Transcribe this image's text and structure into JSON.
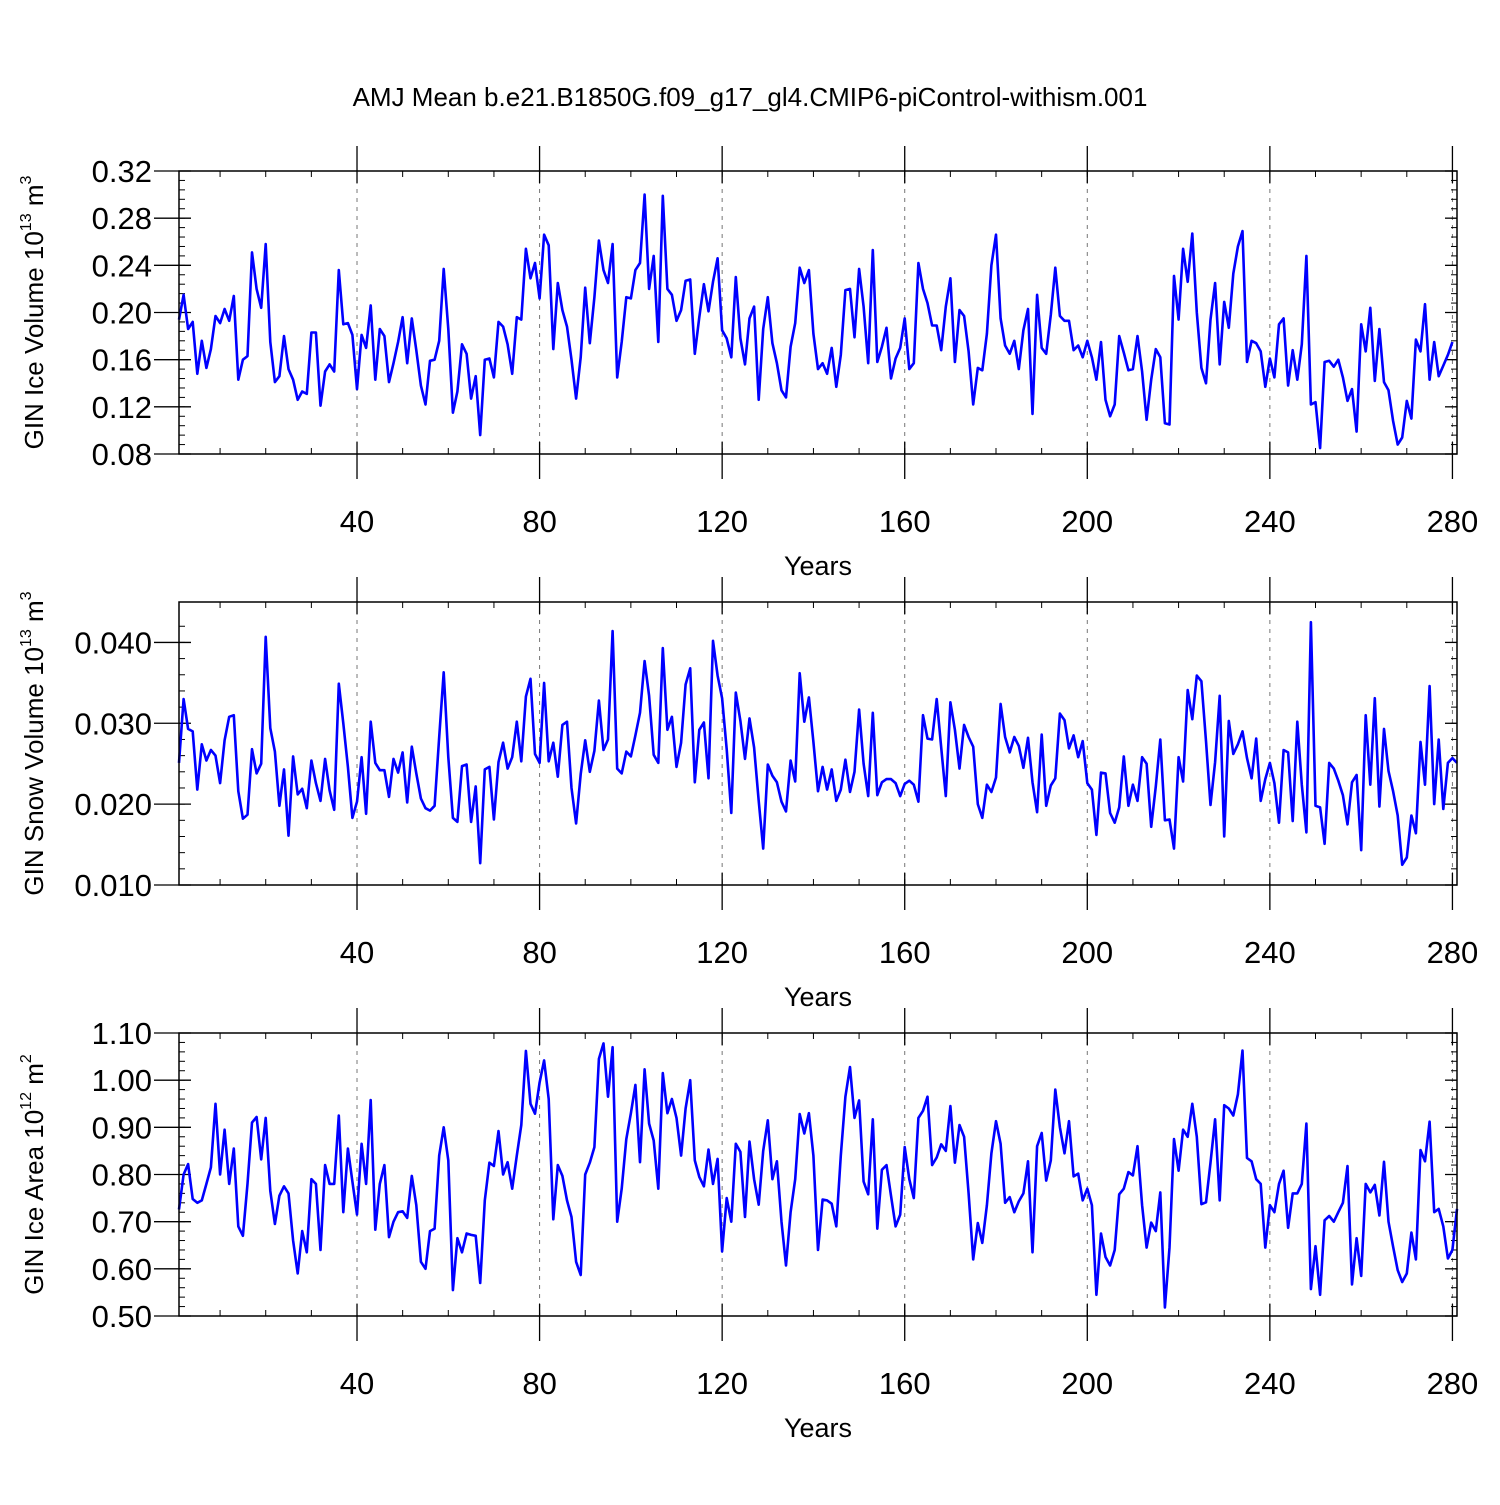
{
  "page": {
    "title": "AMJ Mean b.e21.B1850G.f09_g17_gl4.CMIP6-piControl-withism.001"
  },
  "chart_data": [
    {
      "type": "line",
      "ylabel": "GIN Ice Volume 10",
      "ylabel_sup": "13",
      "ylabel_unit": " m",
      "ylabel_unit_sup": "3",
      "xlabel": "Years",
      "xlim": [
        1,
        281
      ],
      "ylim": [
        0.08,
        0.32
      ],
      "xticks": [
        40,
        80,
        120,
        160,
        200,
        240,
        280
      ],
      "xtick_labels": [
        "40",
        "80",
        "120",
        "160",
        "200",
        "240",
        "280"
      ],
      "yticks": [
        0.08,
        0.12,
        0.16,
        0.2,
        0.24,
        0.28,
        0.32
      ],
      "ytick_labels": [
        "0.08",
        "0.12",
        "0.16",
        "0.20",
        "0.24",
        "0.28",
        "0.32"
      ],
      "y_minor_step": 0.008,
      "x_minor_step": 10,
      "vgrid": "dashed at major x ticks",
      "line_color": "#0000ff",
      "series": [
        {
          "x_start": 1,
          "values": [
            0.194,
            0.215,
            0.186,
            0.192,
            0.148,
            0.176,
            0.153,
            0.169,
            0.197,
            0.191,
            0.203,
            0.193,
            0.214,
            0.143,
            0.16,
            0.163,
            0.251,
            0.22,
            0.204,
            0.258,
            0.175,
            0.141,
            0.146,
            0.18,
            0.152,
            0.143,
            0.126,
            0.133,
            0.131,
            0.183,
            0.183,
            0.121,
            0.15,
            0.156,
            0.15,
            0.236,
            0.19,
            0.191,
            0.181,
            0.135,
            0.181,
            0.17,
            0.206,
            0.143,
            0.186,
            0.18,
            0.141,
            0.157,
            0.175,
            0.196,
            0.157,
            0.195,
            0.168,
            0.138,
            0.122,
            0.159,
            0.16,
            0.176,
            0.237,
            0.186,
            0.115,
            0.133,
            0.173,
            0.165,
            0.127,
            0.146,
            0.096,
            0.16,
            0.161,
            0.145,
            0.192,
            0.188,
            0.173,
            0.148,
            0.196,
            0.194,
            0.254,
            0.229,
            0.242,
            0.212,
            0.266,
            0.257,
            0.169,
            0.225,
            0.202,
            0.188,
            0.16,
            0.127,
            0.162,
            0.221,
            0.174,
            0.213,
            0.261,
            0.236,
            0.225,
            0.258,
            0.145,
            0.175,
            0.213,
            0.212,
            0.236,
            0.242,
            0.3,
            0.22,
            0.248,
            0.175,
            0.299,
            0.22,
            0.215,
            0.193,
            0.202,
            0.227,
            0.228,
            0.165,
            0.196,
            0.224,
            0.201,
            0.226,
            0.246,
            0.185,
            0.178,
            0.162,
            0.23,
            0.178,
            0.156,
            0.195,
            0.205,
            0.126,
            0.186,
            0.213,
            0.174,
            0.157,
            0.134,
            0.128,
            0.171,
            0.191,
            0.238,
            0.225,
            0.236,
            0.182,
            0.152,
            0.157,
            0.148,
            0.17,
            0.137,
            0.164,
            0.219,
            0.22,
            0.179,
            0.237,
            0.205,
            0.157,
            0.253,
            0.158,
            0.171,
            0.187,
            0.144,
            0.161,
            0.17,
            0.195,
            0.152,
            0.157,
            0.242,
            0.22,
            0.208,
            0.189,
            0.189,
            0.168,
            0.205,
            0.229,
            0.158,
            0.202,
            0.197,
            0.167,
            0.122,
            0.153,
            0.151,
            0.182,
            0.24,
            0.266,
            0.195,
            0.172,
            0.165,
            0.176,
            0.152,
            0.185,
            0.203,
            0.114,
            0.215,
            0.17,
            0.165,
            0.198,
            0.238,
            0.197,
            0.193,
            0.193,
            0.168,
            0.172,
            0.162,
            0.176,
            0.162,
            0.143,
            0.175,
            0.126,
            0.112,
            0.122,
            0.18,
            0.166,
            0.151,
            0.152,
            0.18,
            0.15,
            0.109,
            0.143,
            0.169,
            0.162,
            0.106,
            0.105,
            0.231,
            0.194,
            0.254,
            0.226,
            0.267,
            0.2,
            0.153,
            0.14,
            0.194,
            0.225,
            0.156,
            0.209,
            0.187,
            0.233,
            0.256,
            0.269,
            0.158,
            0.176,
            0.174,
            0.167,
            0.137,
            0.161,
            0.145,
            0.19,
            0.195,
            0.138,
            0.168,
            0.143,
            0.173,
            0.248,
            0.122,
            0.124,
            0.085,
            0.158,
            0.159,
            0.154,
            0.16,
            0.145,
            0.125,
            0.135,
            0.099,
            0.19,
            0.167,
            0.204,
            0.142,
            0.186,
            0.141,
            0.134,
            0.108,
            0.088,
            0.094,
            0.125,
            0.11,
            0.177,
            0.167,
            0.207,
            0.143,
            0.175,
            0.146,
            0.155,
            0.164,
            0.175
          ]
        }
      ]
    },
    {
      "type": "line",
      "ylabel": "GIN Snow Volume 10",
      "ylabel_sup": "13",
      "ylabel_unit": " m",
      "ylabel_unit_sup": "3",
      "xlabel": "Years",
      "xlim": [
        1,
        281
      ],
      "ylim": [
        0.01,
        0.045
      ],
      "xticks": [
        40,
        80,
        120,
        160,
        200,
        240,
        280
      ],
      "xtick_labels": [
        "40",
        "80",
        "120",
        "160",
        "200",
        "240",
        "280"
      ],
      "yticks": [
        0.01,
        0.02,
        0.03,
        0.04
      ],
      "ytick_labels": [
        "0.010",
        "0.020",
        "0.030",
        "0.040"
      ],
      "y_minor_step": 0.002,
      "x_minor_step": 10,
      "vgrid": "dashed at major x ticks",
      "line_color": "#0000ff",
      "series": [
        {
          "x_start": 1,
          "values": [
            0.0251,
            0.033,
            0.0293,
            0.029,
            0.0218,
            0.0274,
            0.0254,
            0.0267,
            0.026,
            0.0226,
            0.0279,
            0.0308,
            0.031,
            0.0216,
            0.0182,
            0.0187,
            0.0268,
            0.0238,
            0.025,
            0.0407,
            0.0294,
            0.0265,
            0.0198,
            0.0243,
            0.0161,
            0.0259,
            0.0212,
            0.0219,
            0.0195,
            0.0254,
            0.0226,
            0.0204,
            0.0256,
            0.0217,
            0.0193,
            0.0349,
            0.03,
            0.0246,
            0.0183,
            0.0203,
            0.0258,
            0.0188,
            0.0302,
            0.0251,
            0.0242,
            0.0242,
            0.0209,
            0.0256,
            0.0239,
            0.0264,
            0.0202,
            0.0271,
            0.0238,
            0.0207,
            0.0195,
            0.0192,
            0.0198,
            0.0283,
            0.0363,
            0.0258,
            0.0183,
            0.0178,
            0.0247,
            0.0249,
            0.0178,
            0.0222,
            0.0127,
            0.0243,
            0.0246,
            0.0181,
            0.0252,
            0.0276,
            0.0244,
            0.0258,
            0.0302,
            0.0253,
            0.0333,
            0.0355,
            0.0262,
            0.0251,
            0.035,
            0.0253,
            0.0276,
            0.0234,
            0.0298,
            0.0302,
            0.022,
            0.0176,
            0.0237,
            0.0279,
            0.024,
            0.0266,
            0.0328,
            0.0267,
            0.028,
            0.0414,
            0.0244,
            0.0238,
            0.0265,
            0.0259,
            0.0285,
            0.0313,
            0.0377,
            0.0334,
            0.0261,
            0.0251,
            0.0393,
            0.0292,
            0.0308,
            0.0246,
            0.0276,
            0.0348,
            0.0368,
            0.0227,
            0.0292,
            0.0301,
            0.0232,
            0.0402,
            0.0359,
            0.0331,
            0.0268,
            0.0189,
            0.0338,
            0.0303,
            0.0256,
            0.0306,
            0.027,
            0.0204,
            0.0145,
            0.0249,
            0.0235,
            0.0227,
            0.0203,
            0.0191,
            0.0254,
            0.0228,
            0.0362,
            0.0302,
            0.0332,
            0.0277,
            0.0216,
            0.0246,
            0.0218,
            0.0243,
            0.0204,
            0.0218,
            0.0255,
            0.0215,
            0.024,
            0.0317,
            0.025,
            0.021,
            0.0313,
            0.0211,
            0.0227,
            0.0231,
            0.0231,
            0.0226,
            0.021,
            0.0225,
            0.0229,
            0.0224,
            0.0203,
            0.031,
            0.0281,
            0.028,
            0.033,
            0.027,
            0.021,
            0.0326,
            0.0292,
            0.0244,
            0.0298,
            0.0283,
            0.0271,
            0.02,
            0.0183,
            0.0224,
            0.0215,
            0.0233,
            0.0324,
            0.0283,
            0.0264,
            0.0283,
            0.0272,
            0.0245,
            0.0282,
            0.0227,
            0.019,
            0.0286,
            0.0198,
            0.0223,
            0.0232,
            0.0312,
            0.0304,
            0.0269,
            0.0285,
            0.0258,
            0.0278,
            0.0226,
            0.0218,
            0.0162,
            0.0239,
            0.0238,
            0.0189,
            0.0177,
            0.0196,
            0.0259,
            0.0198,
            0.0224,
            0.0204,
            0.0258,
            0.025,
            0.0172,
            0.0222,
            0.028,
            0.018,
            0.0181,
            0.0145,
            0.0258,
            0.0228,
            0.0341,
            0.0305,
            0.0359,
            0.0352,
            0.0278,
            0.0199,
            0.0252,
            0.0334,
            0.016,
            0.0303,
            0.0262,
            0.0274,
            0.029,
            0.0257,
            0.0232,
            0.0281,
            0.0204,
            0.0231,
            0.0251,
            0.0226,
            0.0177,
            0.0267,
            0.0264,
            0.0179,
            0.0302,
            0.0224,
            0.0165,
            0.0425,
            0.0198,
            0.0196,
            0.0151,
            0.0251,
            0.0244,
            0.0229,
            0.0211,
            0.0175,
            0.0227,
            0.0236,
            0.0143,
            0.031,
            0.0224,
            0.0331,
            0.0197,
            0.0293,
            0.0241,
            0.0216,
            0.0186,
            0.0125,
            0.0134,
            0.0186,
            0.0164,
            0.0277,
            0.0224,
            0.0346,
            0.02,
            0.028,
            0.0194,
            0.0251,
            0.0257,
            0.0251
          ]
        }
      ]
    },
    {
      "type": "line",
      "ylabel": "GIN Ice Area 10",
      "ylabel_sup": "12",
      "ylabel_unit": " m",
      "ylabel_unit_sup": "2",
      "xlabel": "Years",
      "xlim": [
        1,
        281
      ],
      "ylim": [
        0.5,
        1.1
      ],
      "xticks": [
        40,
        80,
        120,
        160,
        200,
        240,
        280
      ],
      "xtick_labels": [
        "40",
        "80",
        "120",
        "160",
        "200",
        "240",
        "280"
      ],
      "yticks": [
        0.5,
        0.6,
        0.7,
        0.8,
        0.9,
        1.0,
        1.1
      ],
      "ytick_labels": [
        "0.50",
        "0.60",
        "0.70",
        "0.80",
        "0.90",
        "1.00",
        "1.10"
      ],
      "y_minor_step": 0.02,
      "x_minor_step": 10,
      "vgrid": "dashed at major x ticks",
      "line_color": "#0000ff",
      "series": [
        {
          "x_start": 1,
          "values": [
            0.726,
            0.8,
            0.822,
            0.748,
            0.74,
            0.745,
            0.78,
            0.815,
            0.95,
            0.8,
            0.895,
            0.78,
            0.855,
            0.69,
            0.67,
            0.78,
            0.91,
            0.922,
            0.832,
            0.92,
            0.765,
            0.695,
            0.755,
            0.775,
            0.76,
            0.66,
            0.59,
            0.68,
            0.635,
            0.79,
            0.78,
            0.64,
            0.82,
            0.78,
            0.78,
            0.925,
            0.72,
            0.855,
            0.785,
            0.715,
            0.865,
            0.78,
            0.958,
            0.683,
            0.78,
            0.82,
            0.667,
            0.7,
            0.72,
            0.722,
            0.708,
            0.797,
            0.735,
            0.615,
            0.6,
            0.68,
            0.685,
            0.84,
            0.9,
            0.83,
            0.555,
            0.665,
            0.635,
            0.675,
            0.672,
            0.67,
            0.57,
            0.745,
            0.825,
            0.818,
            0.892,
            0.8,
            0.826,
            0.77,
            0.84,
            0.905,
            1.062,
            0.95,
            0.929,
            0.995,
            1.042,
            0.96,
            0.705,
            0.82,
            0.797,
            0.745,
            0.71,
            0.615,
            0.587,
            0.8,
            0.825,
            0.858,
            1.045,
            1.078,
            0.965,
            1.07,
            0.7,
            0.77,
            0.875,
            0.93,
            0.99,
            0.826,
            1.023,
            0.908,
            0.872,
            0.77,
            1.015,
            0.93,
            0.96,
            0.92,
            0.84,
            0.94,
            1.0,
            0.83,
            0.795,
            0.775,
            0.853,
            0.78,
            0.833,
            0.637,
            0.75,
            0.7,
            0.865,
            0.848,
            0.71,
            0.87,
            0.79,
            0.736,
            0.85,
            0.915,
            0.79,
            0.828,
            0.7,
            0.607,
            0.72,
            0.79,
            0.928,
            0.887,
            0.93,
            0.84,
            0.64,
            0.747,
            0.745,
            0.738,
            0.69,
            0.84,
            0.965,
            1.028,
            0.92,
            0.957,
            0.785,
            0.758,
            0.917,
            0.685,
            0.81,
            0.82,
            0.755,
            0.69,
            0.715,
            0.858,
            0.79,
            0.75,
            0.92,
            0.935,
            0.965,
            0.82,
            0.836,
            0.864,
            0.85,
            0.945,
            0.825,
            0.905,
            0.88,
            0.76,
            0.62,
            0.697,
            0.655,
            0.735,
            0.845,
            0.913,
            0.865,
            0.74,
            0.752,
            0.72,
            0.743,
            0.76,
            0.828,
            0.635,
            0.86,
            0.888,
            0.787,
            0.83,
            0.98,
            0.9,
            0.845,
            0.913,
            0.796,
            0.802,
            0.745,
            0.77,
            0.735,
            0.545,
            0.675,
            0.625,
            0.607,
            0.64,
            0.758,
            0.77,
            0.805,
            0.798,
            0.86,
            0.735,
            0.645,
            0.698,
            0.68,
            0.762,
            0.518,
            0.645,
            0.875,
            0.808,
            0.895,
            0.88,
            0.95,
            0.88,
            0.737,
            0.741,
            0.825,
            0.917,
            0.745,
            0.947,
            0.94,
            0.925,
            0.97,
            1.063,
            0.835,
            0.828,
            0.79,
            0.78,
            0.645,
            0.735,
            0.72,
            0.78,
            0.808,
            0.687,
            0.76,
            0.76,
            0.78,
            0.908,
            0.557,
            0.648,
            0.545,
            0.703,
            0.712,
            0.7,
            0.72,
            0.74,
            0.818,
            0.567,
            0.665,
            0.585,
            0.78,
            0.762,
            0.778,
            0.713,
            0.827,
            0.7,
            0.647,
            0.597,
            0.572,
            0.59,
            0.677,
            0.62,
            0.852,
            0.828,
            0.912,
            0.72,
            0.727,
            0.69,
            0.622,
            0.64,
            0.727
          ]
        }
      ]
    }
  ]
}
